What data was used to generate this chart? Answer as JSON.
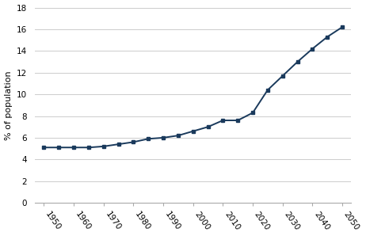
{
  "years": [
    1950,
    1955,
    1960,
    1965,
    1970,
    1975,
    1980,
    1985,
    1990,
    1995,
    2000,
    2005,
    2010,
    2015,
    2020,
    2025,
    2030,
    2035,
    2040,
    2045,
    2050
  ],
  "values": [
    5.1,
    5.1,
    5.1,
    5.1,
    5.2,
    5.4,
    5.6,
    5.9,
    6.0,
    6.2,
    6.6,
    7.0,
    7.6,
    7.6,
    8.3,
    10.4,
    11.7,
    13.0,
    14.2,
    15.3,
    16.2
  ],
  "line_color": "#1a3a5c",
  "marker": "s",
  "marker_size": 3.5,
  "linewidth": 1.4,
  "ylabel": "% of population",
  "ylim": [
    0,
    18
  ],
  "yticks": [
    0,
    2,
    4,
    6,
    8,
    10,
    12,
    14,
    16,
    18
  ],
  "xlim": [
    1947,
    2053
  ],
  "xticks": [
    1950,
    1960,
    1970,
    1980,
    1990,
    2000,
    2010,
    2020,
    2030,
    2040,
    2050
  ],
  "grid_color": "#cccccc",
  "background_color": "#ffffff",
  "tick_label_fontsize": 7.5,
  "ylabel_fontsize": 8
}
